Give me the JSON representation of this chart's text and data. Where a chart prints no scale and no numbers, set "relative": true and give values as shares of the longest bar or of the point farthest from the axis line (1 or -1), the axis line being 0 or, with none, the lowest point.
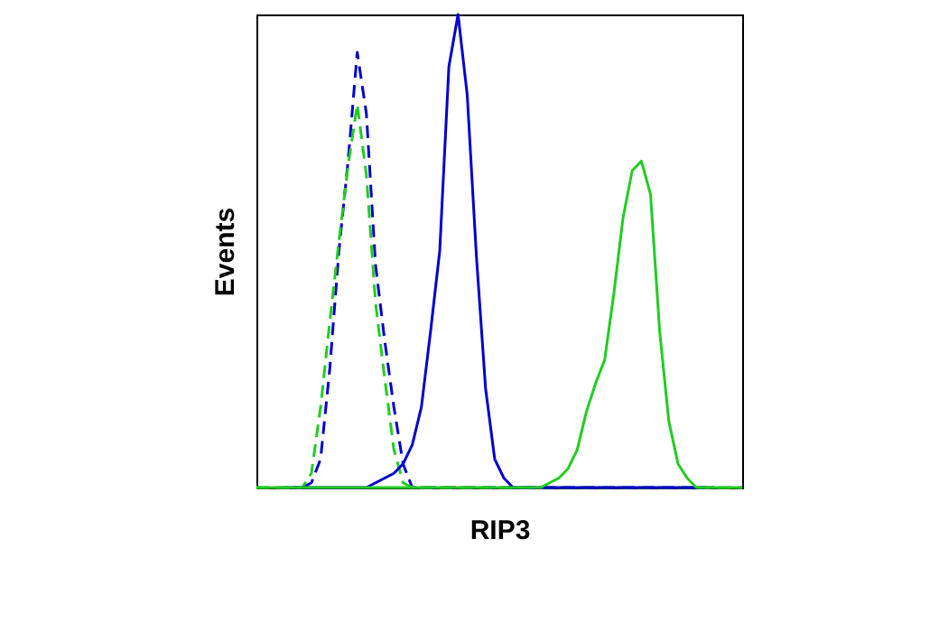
{
  "chart_data": {
    "type": "line",
    "relative": true,
    "xlabel": "RIP3",
    "ylabel": "Events",
    "grid": false,
    "marker": "none",
    "categories": [
      null,
      null,
      null,
      null,
      null,
      null,
      null,
      null,
      null,
      null,
      null,
      null,
      null,
      null,
      null,
      null,
      null,
      null,
      null,
      null,
      null,
      null,
      null,
      null,
      null,
      null,
      null,
      null,
      null,
      null,
      null,
      null,
      null,
      null,
      null,
      null,
      null,
      null,
      null,
      null,
      null,
      null,
      null,
      null,
      null,
      null,
      null,
      null,
      null,
      null,
      null,
      null,
      null,
      null
    ],
    "series": [
      {
        "color": "#0000cc",
        "line_style": "dashed",
        "values": [
          null,
          null,
          null,
          0,
          0,
          0,
          0.01,
          0.06,
          0.25,
          0.5,
          0.69,
          0.92,
          0.79,
          0.47,
          0.31,
          0.17,
          0.05,
          0,
          0,
          0,
          0,
          0,
          0,
          0,
          0,
          0,
          0,
          0,
          0,
          0,
          0,
          0,
          0,
          0,
          0,
          0,
          0,
          0,
          0,
          0,
          0,
          0,
          0,
          0,
          0,
          0,
          0,
          0,
          0,
          0,
          0,
          null,
          null,
          null
        ]
      },
      {
        "color": "#22cc22",
        "line_style": "dashed",
        "values": [
          0,
          0,
          0,
          0,
          0,
          0,
          0.03,
          0.17,
          0.35,
          0.52,
          0.68,
          0.81,
          0.66,
          0.39,
          0.23,
          0.08,
          0.01,
          0,
          0,
          0,
          0,
          0,
          0,
          0,
          0,
          0,
          0,
          0,
          0,
          0,
          0,
          0,
          0,
          0,
          0,
          0,
          0,
          0,
          0,
          0,
          0,
          0,
          0,
          0,
          0,
          0,
          0,
          0,
          0,
          0,
          0,
          0,
          0,
          0
        ]
      },
      {
        "color": "#0000cc",
        "line_style": "solid",
        "values": [
          null,
          null,
          null,
          null,
          0,
          0,
          0,
          0,
          0,
          0,
          0,
          0,
          0,
          0.01,
          0.02,
          0.03,
          0.05,
          0.09,
          0.17,
          0.33,
          0.5,
          0.89,
          1,
          0.83,
          0.49,
          0.21,
          0.06,
          0.02,
          0,
          0,
          0,
          0,
          0,
          0,
          0,
          0,
          0,
          0,
          0,
          0,
          0,
          0,
          0,
          0,
          0,
          0,
          0,
          0,
          0,
          0,
          null,
          null,
          null,
          null
        ]
      },
      {
        "color": "#22cc22",
        "line_style": "solid",
        "values": [
          0,
          0,
          0,
          0,
          0,
          0,
          0,
          0,
          0,
          0,
          0,
          0,
          0,
          0,
          0,
          0,
          0,
          0,
          0,
          0,
          0,
          0,
          0,
          0,
          0,
          0,
          0,
          0,
          0,
          0,
          0,
          0,
          0.01,
          0.02,
          0.04,
          0.08,
          0.16,
          0.22,
          0.27,
          0.41,
          0.57,
          0.67,
          0.69,
          0.62,
          0.33,
          0.14,
          0.05,
          0.02,
          0,
          0,
          0,
          0,
          0,
          0
        ]
      }
    ]
  }
}
